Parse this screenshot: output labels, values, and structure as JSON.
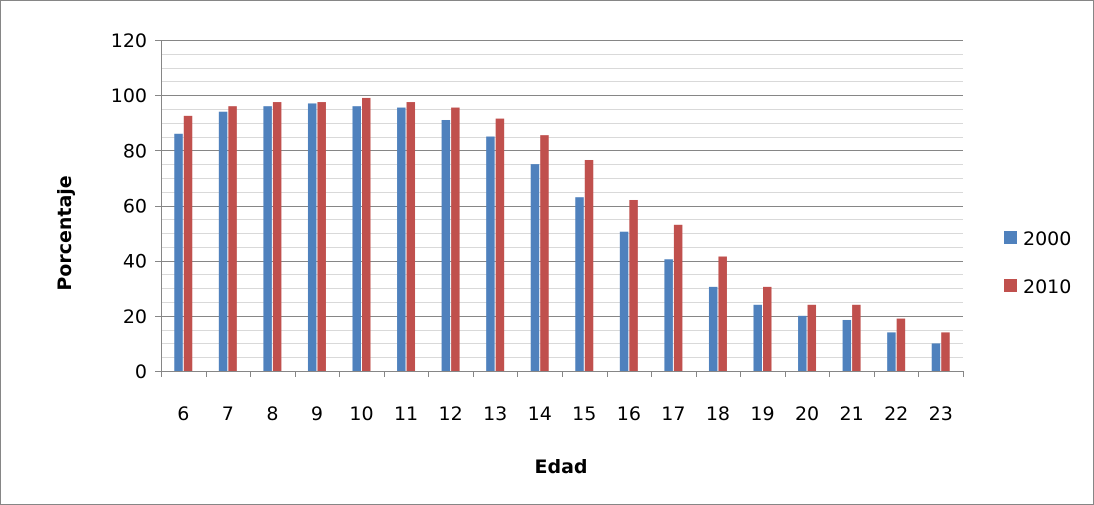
{
  "chart_data": {
    "type": "bar",
    "xlabel": "Edad",
    "ylabel": "Porcentaje",
    "categories": [
      "6",
      "7",
      "8",
      "9",
      "10",
      "11",
      "12",
      "13",
      "14",
      "15",
      "16",
      "17",
      "18",
      "19",
      "20",
      "21",
      "22",
      "23"
    ],
    "series": [
      {
        "name": "2000",
        "color": "#4F81BD",
        "values": [
          86,
          94,
          96,
          97,
          96,
          95.5,
          91,
          85,
          75,
          63,
          50.5,
          40.5,
          30.5,
          24,
          20,
          18.5,
          14,
          10
        ]
      },
      {
        "name": "2010",
        "color": "#C0504D",
        "values": [
          92.5,
          96,
          97.5,
          97.5,
          99,
          97.5,
          95.5,
          91.5,
          85.5,
          76.5,
          62,
          53,
          41.5,
          30.5,
          24,
          24,
          19,
          14
        ]
      }
    ],
    "ylim": [
      0,
      120
    ],
    "yticks": [
      0,
      20,
      40,
      60,
      80,
      100,
      120
    ],
    "minor_gridlines_every": 4,
    "grid": true,
    "legend_position": "right"
  }
}
